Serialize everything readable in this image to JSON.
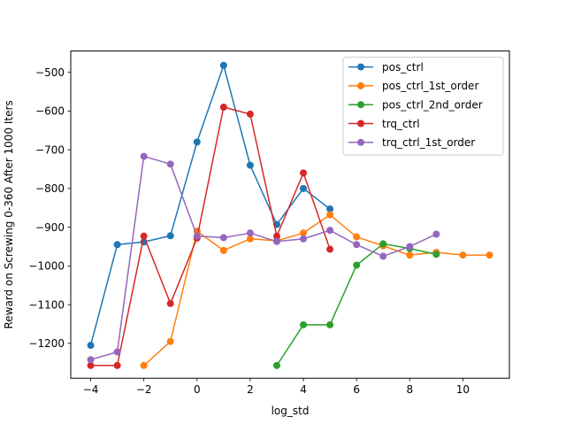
{
  "chart_data": {
    "type": "line",
    "title": "",
    "xlabel": "log_std",
    "ylabel": "Reward on Screwing 0-360 After 1000 Iters",
    "xlim": [
      -4.75,
      11.75
    ],
    "ylim": [
      -1290,
      -445
    ],
    "xticks": [
      -4,
      -2,
      0,
      2,
      4,
      6,
      8,
      10
    ],
    "xtick_labels": [
      "−4",
      "−2",
      "0",
      "2",
      "4",
      "6",
      "8",
      "10"
    ],
    "yticks": [
      -1200,
      -1100,
      -1000,
      -900,
      -800,
      -700,
      -600,
      -500
    ],
    "ytick_labels": [
      "−1200",
      "−1100",
      "−1000",
      "−900",
      "−800",
      "−700",
      "−600",
      "−500"
    ],
    "grid": false,
    "legend_position": "top-right",
    "series": [
      {
        "name": "pos_ctrl",
        "color": "#1f77b4",
        "x": [
          -4,
          -3,
          -2,
          -1,
          0,
          1,
          2,
          3,
          4,
          5
        ],
        "y": [
          -1205,
          -945,
          -938,
          -922,
          -680,
          -482,
          -740,
          -893,
          -800,
          -853
        ]
      },
      {
        "name": "pos_ctrl_1st_order",
        "color": "#ff7f0e",
        "x": [
          -2,
          -1,
          0,
          1,
          2,
          3,
          4,
          5,
          6,
          7,
          8,
          9,
          10,
          11
        ],
        "y": [
          -1257,
          -1195,
          -910,
          -960,
          -930,
          -935,
          -915,
          -868,
          -925,
          -948,
          -972,
          -965,
          -972,
          -972
        ]
      },
      {
        "name": "pos_ctrl_2nd_order",
        "color": "#2ca02c",
        "x": [
          3,
          4,
          5,
          6,
          7,
          8,
          9
        ],
        "y": [
          -1257,
          -1152,
          -1152,
          -998,
          -943,
          -955,
          -970
        ]
      },
      {
        "name": "trq_ctrl",
        "color": "#d62728",
        "x": [
          -4,
          -3,
          -2,
          -1,
          0,
          1,
          2,
          3,
          4,
          5
        ],
        "y": [
          -1257,
          -1257,
          -923,
          -1097,
          -928,
          -590,
          -608,
          -923,
          -760,
          -957
        ]
      },
      {
        "name": "trq_ctrl_1st_order",
        "color": "#9467bd",
        "x": [
          -4,
          -3,
          -2,
          -1,
          0,
          1,
          2,
          3,
          4,
          5,
          6,
          7,
          8,
          9
        ],
        "y": [
          -1242,
          -1222,
          -717,
          -737,
          -923,
          -927,
          -915,
          -937,
          -930,
          -908,
          -945,
          -975,
          -950,
          -918
        ]
      }
    ]
  }
}
